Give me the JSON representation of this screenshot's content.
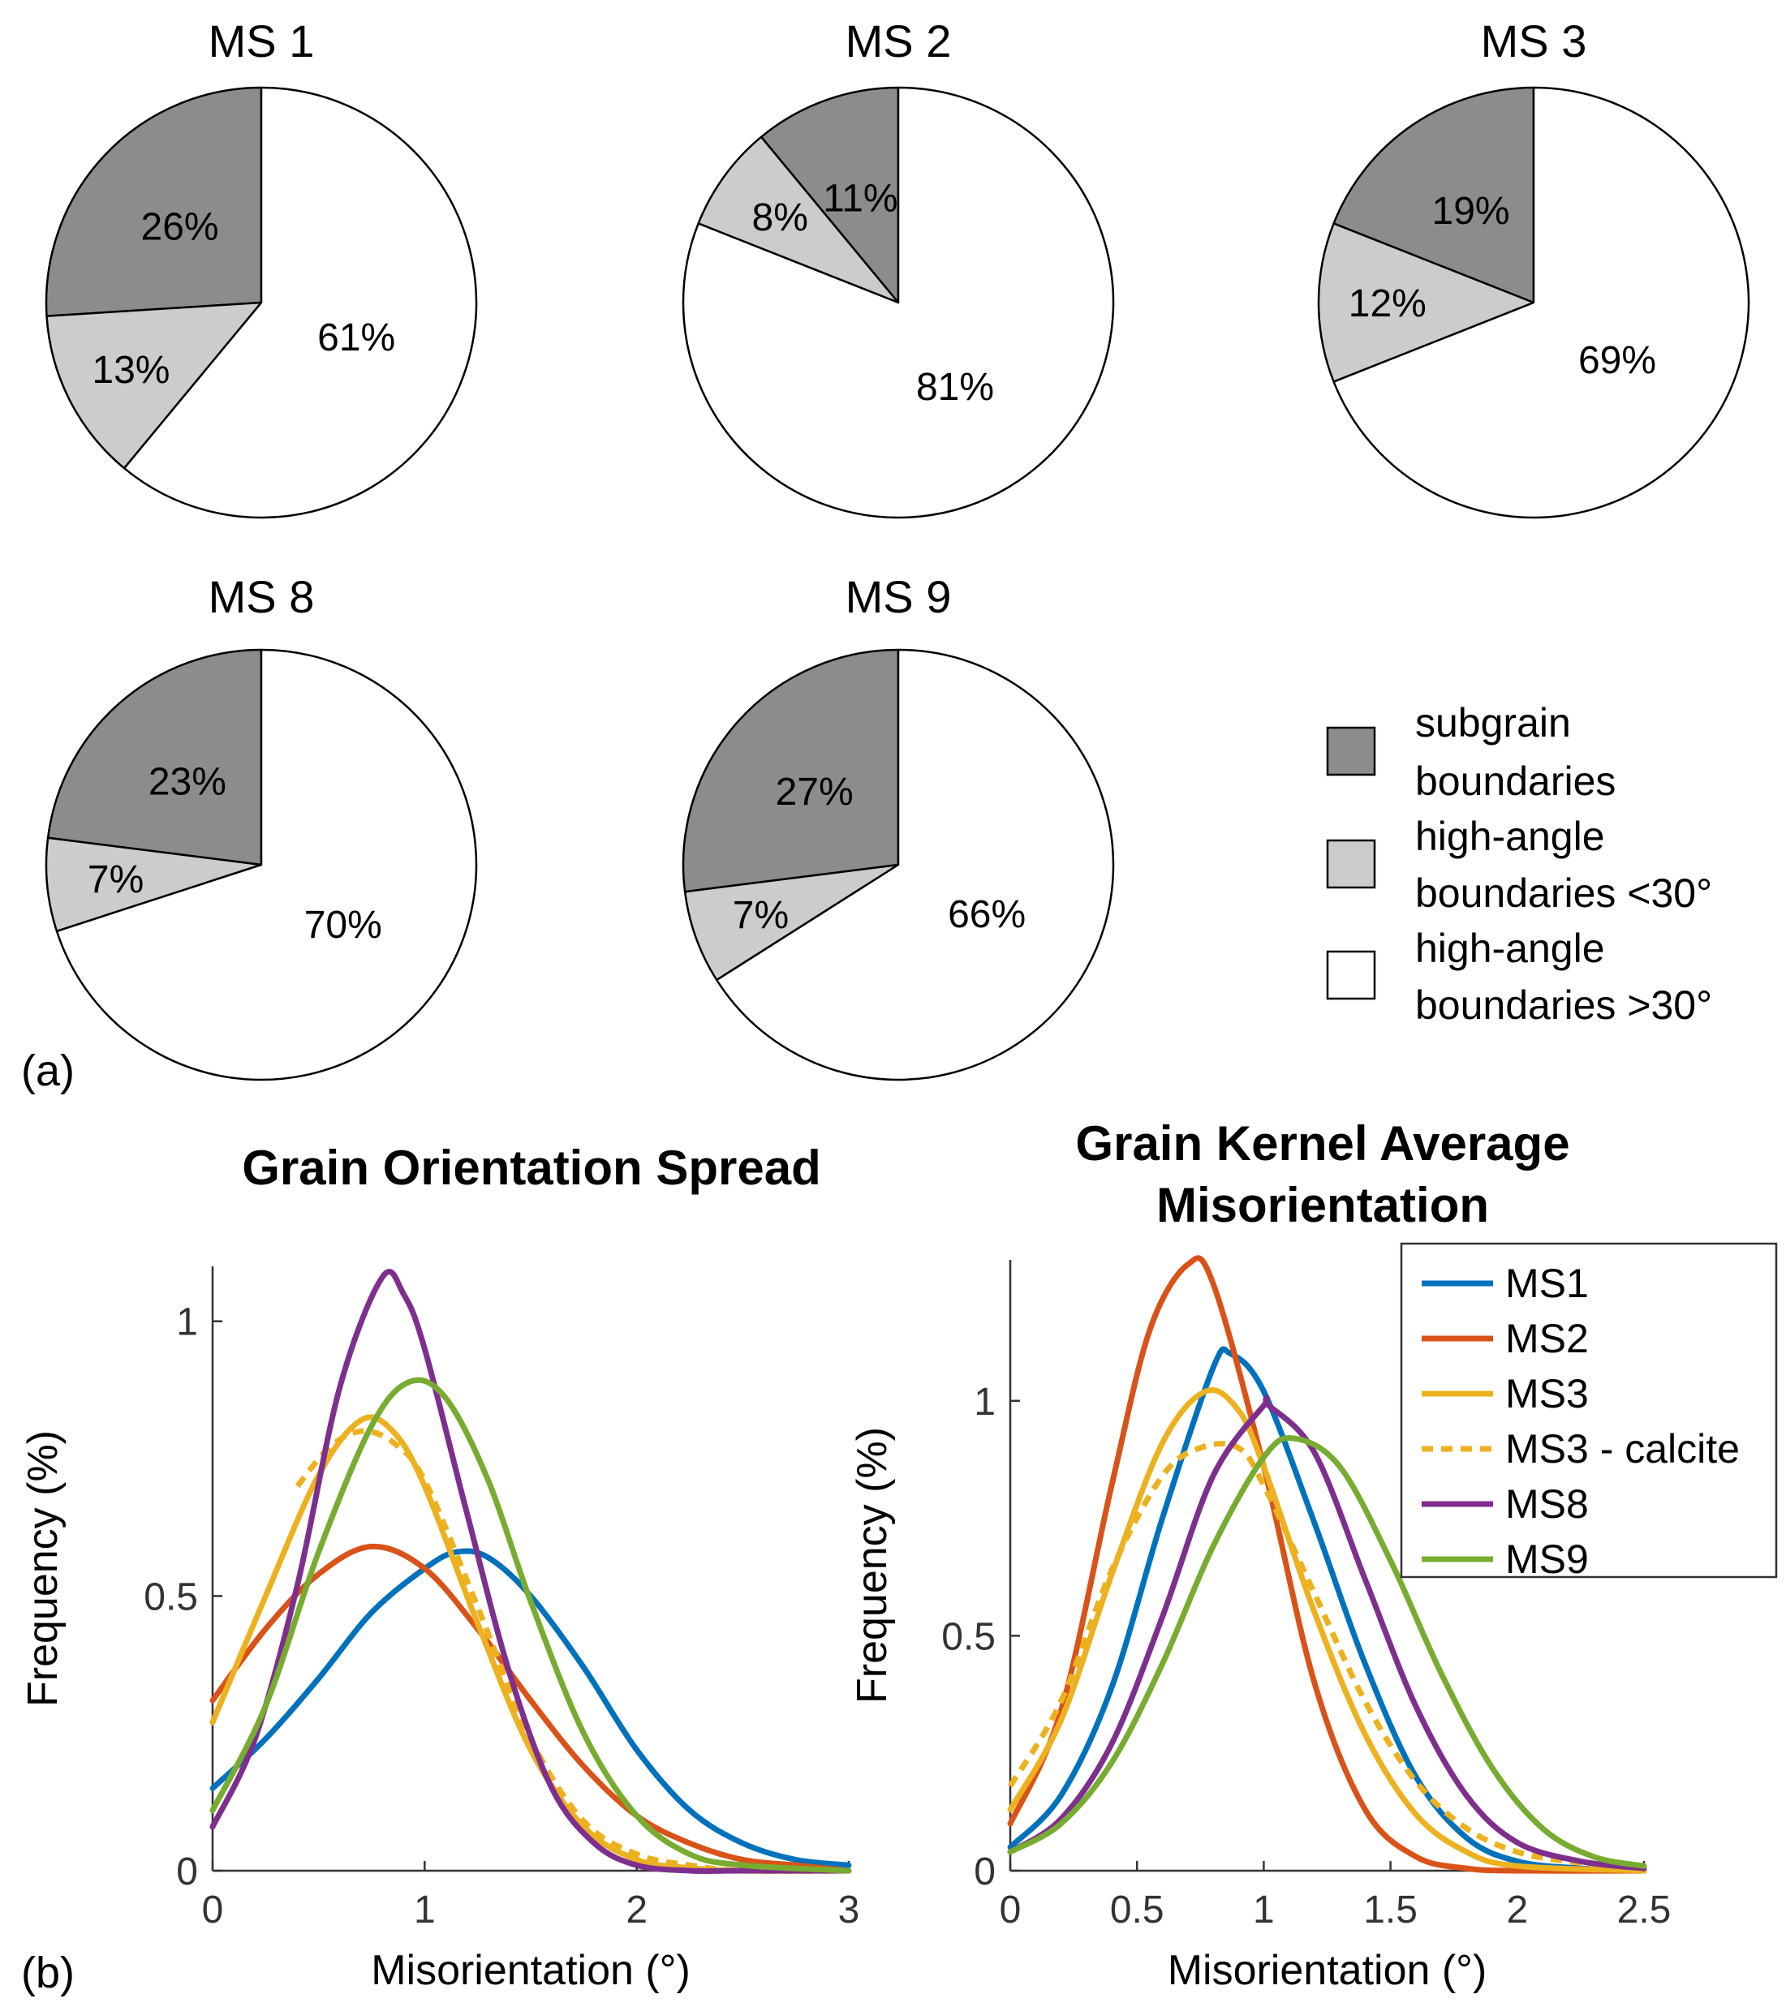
{
  "panel_labels": {
    "a": "(a)",
    "b": "(b)"
  },
  "colors": {
    "subgrain": "#8c8c8c",
    "high_lt30": "#cccccc",
    "high_gt30": "#ffffff",
    "MS1": "#0072bd",
    "MS2": "#d95319",
    "MS3": "#edb120",
    "MS3_calcite": "#edb120",
    "MS8": "#7e2f8e",
    "MS9": "#77ac30"
  },
  "pie_legend": [
    {
      "key": "subgrain",
      "line1": "subgrain",
      "line2": "boundaries"
    },
    {
      "key": "high_lt30",
      "line1": "high-angle",
      "line2": "boundaries <30°"
    },
    {
      "key": "high_gt30",
      "line1": "high-angle",
      "line2": "boundaries >30°"
    }
  ],
  "chart_data": [
    {
      "type": "pie",
      "title": "MS 1",
      "labels": [
        "subgrain boundaries",
        "high-angle boundaries <30°",
        "high-angle boundaries >30°"
      ],
      "values": [
        26,
        13,
        61
      ],
      "value_labels": [
        "26%",
        "13%",
        "61%"
      ]
    },
    {
      "type": "pie",
      "title": "MS 2",
      "labels": [
        "subgrain boundaries",
        "high-angle boundaries <30°",
        "high-angle boundaries >30°"
      ],
      "values": [
        11,
        8,
        81
      ],
      "value_labels": [
        "11%",
        "8%",
        "81%"
      ]
    },
    {
      "type": "pie",
      "title": "MS 3",
      "labels": [
        "subgrain boundaries",
        "high-angle boundaries <30°",
        "high-angle boundaries >30°"
      ],
      "values": [
        19,
        12,
        69
      ],
      "value_labels": [
        "19%",
        "12%",
        "69%"
      ]
    },
    {
      "type": "pie",
      "title": "MS 8",
      "labels": [
        "subgrain boundaries",
        "high-angle boundaries <30°",
        "high-angle boundaries >30°"
      ],
      "values": [
        23,
        7,
        70
      ],
      "value_labels": [
        "23%",
        "7%",
        "70%"
      ]
    },
    {
      "type": "pie",
      "title": "MS 9",
      "labels": [
        "subgrain boundaries",
        "high-angle boundaries <30°",
        "high-angle boundaries >30°"
      ],
      "values": [
        27,
        7,
        66
      ],
      "value_labels": [
        "27%",
        "7%",
        "66%"
      ]
    },
    {
      "type": "line",
      "title": "Grain Orientation Spread",
      "xlabel": "Misorientation (°)",
      "ylabel": "Frequency (%)",
      "xlim": [
        0,
        3
      ],
      "ylim": [
        0,
        1.1
      ],
      "xticks": [
        0,
        1,
        2,
        3
      ],
      "xtick_labels": [
        "0",
        "1",
        "2",
        "3"
      ],
      "yticks": [
        0,
        0.5,
        1
      ],
      "ytick_labels": [
        "0",
        "0.5",
        "1"
      ],
      "series": [
        {
          "name": "MS1",
          "color_key": "MS1",
          "dash": false,
          "x": [
            0,
            0.25,
            0.5,
            0.75,
            1.0,
            1.15,
            1.3,
            1.5,
            1.75,
            2.0,
            2.25,
            2.5,
            2.75,
            3.0
          ],
          "y": [
            0.15,
            0.24,
            0.35,
            0.47,
            0.55,
            0.58,
            0.57,
            0.5,
            0.37,
            0.22,
            0.11,
            0.05,
            0.02,
            0.01
          ]
        },
        {
          "name": "MS2",
          "color_key": "MS2",
          "dash": false,
          "x": [
            0,
            0.25,
            0.5,
            0.75,
            1.0,
            1.25,
            1.5,
            1.75,
            2.0,
            2.25,
            2.5,
            2.75,
            3.0
          ],
          "y": [
            0.31,
            0.44,
            0.54,
            0.59,
            0.55,
            0.44,
            0.31,
            0.19,
            0.1,
            0.05,
            0.02,
            0.01,
            0.0
          ]
        },
        {
          "name": "MS3",
          "color_key": "MS3",
          "dash": false,
          "x": [
            0,
            0.25,
            0.5,
            0.7,
            0.85,
            1.0,
            1.25,
            1.5,
            1.75,
            2.0,
            2.25,
            2.5,
            3.0
          ],
          "y": [
            0.27,
            0.5,
            0.72,
            0.82,
            0.8,
            0.7,
            0.45,
            0.22,
            0.08,
            0.02,
            0.005,
            0.0,
            0.0
          ]
        },
        {
          "name": "MS3 - calcite",
          "color_key": "MS3_calcite",
          "dash": true,
          "x": [
            0.4,
            0.55,
            0.7,
            0.85,
            1.0,
            1.25,
            1.5,
            1.75,
            2.0,
            2.25,
            2.5,
            3.0
          ],
          "y": [
            0.7,
            0.77,
            0.8,
            0.78,
            0.71,
            0.48,
            0.24,
            0.09,
            0.03,
            0.01,
            0.0,
            0.0
          ]
        },
        {
          "name": "MS8",
          "color_key": "MS8",
          "dash": false,
          "x": [
            0,
            0.2,
            0.4,
            0.6,
            0.8,
            0.9,
            1.0,
            1.2,
            1.4,
            1.6,
            1.8,
            2.0,
            2.25,
            2.5,
            3.0
          ],
          "y": [
            0.08,
            0.24,
            0.52,
            0.88,
            1.08,
            1.05,
            0.95,
            0.65,
            0.36,
            0.15,
            0.05,
            0.01,
            0.0,
            0.0,
            0.0
          ]
        },
        {
          "name": "MS9",
          "color_key": "MS9",
          "dash": false,
          "x": [
            0,
            0.25,
            0.5,
            0.75,
            0.93,
            1.1,
            1.3,
            1.5,
            1.75,
            2.0,
            2.25,
            2.5,
            3.0
          ],
          "y": [
            0.11,
            0.3,
            0.58,
            0.81,
            0.89,
            0.86,
            0.71,
            0.49,
            0.25,
            0.1,
            0.03,
            0.01,
            0.0
          ]
        }
      ]
    },
    {
      "type": "line",
      "title": "Grain Kernel Average Misorientation",
      "title_lines": [
        "Grain Kernel Average",
        "Misorientation"
      ],
      "xlabel": "Misorientation (°)",
      "ylabel": "Frequency (%)",
      "xlim": [
        0,
        2.5
      ],
      "ylim": [
        0,
        1.3
      ],
      "xticks": [
        0,
        0.5,
        1,
        1.5,
        2,
        2.5
      ],
      "xtick_labels": [
        "0",
        "0.5",
        "1",
        "1.5",
        "2",
        "2.5"
      ],
      "yticks": [
        0,
        0.5,
        1
      ],
      "ytick_labels": [
        "0",
        "0.5",
        "1"
      ],
      "legend": [
        "MS1",
        "MS2",
        "MS3",
        "MS3 - calcite",
        "MS8",
        "MS9"
      ],
      "series": [
        {
          "name": "MS1",
          "color_key": "MS1",
          "dash": false,
          "x": [
            0,
            0.2,
            0.4,
            0.6,
            0.8,
            0.87,
            1.0,
            1.2,
            1.4,
            1.6,
            1.8,
            2.0,
            2.25,
            2.5
          ],
          "y": [
            0.05,
            0.16,
            0.39,
            0.75,
            1.07,
            1.1,
            1.02,
            0.74,
            0.44,
            0.2,
            0.07,
            0.02,
            0.005,
            0.0
          ]
        },
        {
          "name": "MS2",
          "color_key": "MS2",
          "dash": false,
          "x": [
            0,
            0.2,
            0.4,
            0.55,
            0.7,
            0.8,
            1.0,
            1.2,
            1.4,
            1.6,
            1.8,
            2.0,
            2.5
          ],
          "y": [
            0.1,
            0.34,
            0.82,
            1.15,
            1.29,
            1.25,
            0.86,
            0.4,
            0.13,
            0.03,
            0.005,
            0.0,
            0.0
          ]
        },
        {
          "name": "MS3",
          "color_key": "MS3",
          "dash": false,
          "x": [
            0,
            0.2,
            0.4,
            0.6,
            0.77,
            0.9,
            1.0,
            1.2,
            1.4,
            1.6,
            1.8,
            2.0,
            2.5
          ],
          "y": [
            0.13,
            0.32,
            0.63,
            0.91,
            1.02,
            0.98,
            0.86,
            0.55,
            0.29,
            0.12,
            0.04,
            0.01,
            0.0
          ]
        },
        {
          "name": "MS3 - calcite",
          "color_key": "MS3_calcite",
          "dash": true,
          "x": [
            0,
            0.2,
            0.4,
            0.6,
            0.75,
            0.9,
            1.0,
            1.2,
            1.4,
            1.6,
            1.8,
            2.0,
            2.2,
            2.5
          ],
          "y": [
            0.18,
            0.36,
            0.64,
            0.84,
            0.9,
            0.9,
            0.82,
            0.59,
            0.36,
            0.19,
            0.09,
            0.04,
            0.02,
            0.0
          ]
        },
        {
          "name": "MS8",
          "color_key": "MS8",
          "dash": false,
          "x": [
            0,
            0.2,
            0.4,
            0.6,
            0.8,
            1.0,
            1.02,
            1.2,
            1.4,
            1.6,
            1.8,
            2.0,
            2.25,
            2.5
          ],
          "y": [
            0.04,
            0.11,
            0.27,
            0.54,
            0.84,
            0.99,
            0.99,
            0.89,
            0.62,
            0.35,
            0.16,
            0.06,
            0.02,
            0.005
          ]
        },
        {
          "name": "MS9",
          "color_key": "MS9",
          "dash": false,
          "x": [
            0,
            0.2,
            0.4,
            0.6,
            0.8,
            1.0,
            1.12,
            1.3,
            1.5,
            1.7,
            1.9,
            2.1,
            2.3,
            2.5
          ],
          "y": [
            0.04,
            0.1,
            0.23,
            0.44,
            0.69,
            0.88,
            0.92,
            0.86,
            0.66,
            0.42,
            0.22,
            0.09,
            0.03,
            0.01
          ]
        }
      ]
    }
  ]
}
